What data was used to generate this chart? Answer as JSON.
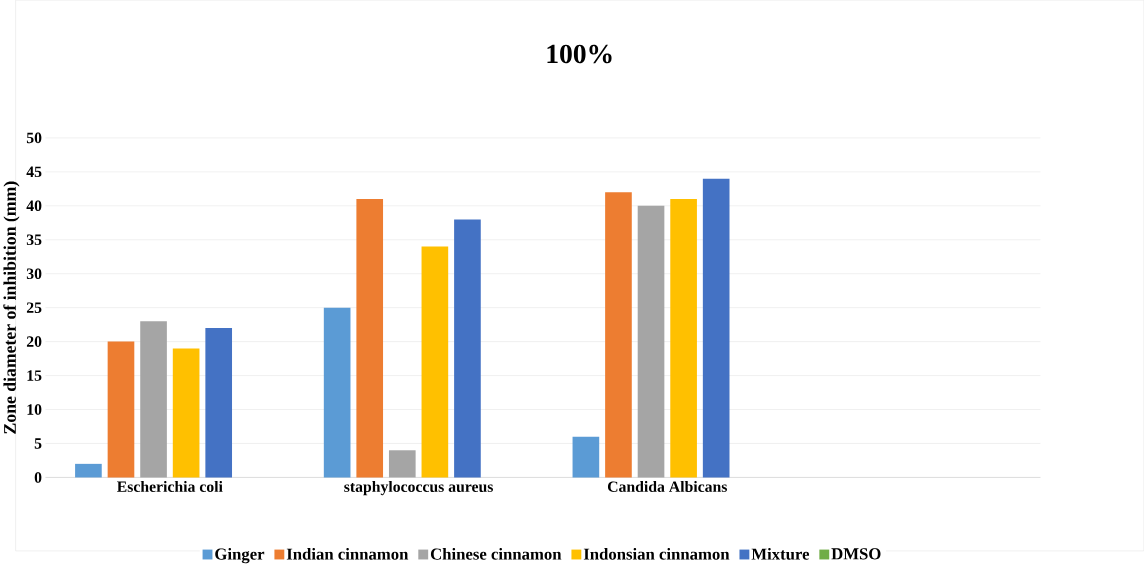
{
  "chart_data": {
    "type": "bar",
    "title": "100%",
    "ylabel": "Zone diameter of inhibition (mm)",
    "categories": [
      "Escherichia coli",
      "staphylococcus aureus",
      "Candida Albicans",
      null
    ],
    "series": [
      {
        "name": "Ginger",
        "color": "#5b9bd5",
        "values": [
          2,
          25,
          6,
          null
        ]
      },
      {
        "name": "Indian cinnamon",
        "color": "#ed7d31",
        "values": [
          20,
          41,
          42,
          null
        ]
      },
      {
        "name": "Chinese cinnamon",
        "color": "#a5a5a5",
        "values": [
          23,
          4,
          40,
          null
        ]
      },
      {
        "name": "Indonsian cinnamon",
        "color": "#ffc000",
        "values": [
          19,
          34,
          41,
          null
        ]
      },
      {
        "name": "Mixture",
        "color": "#4472c4",
        "values": [
          22,
          38,
          44,
          null
        ]
      },
      {
        "name": "DMSO",
        "color": "#70ad47",
        "values": [
          0,
          0,
          0,
          null
        ]
      }
    ],
    "ylim": [
      0,
      50
    ],
    "yticks": [
      0,
      5,
      10,
      15,
      20,
      25,
      30,
      35,
      40,
      45,
      50
    ],
    "grid": "y",
    "legend": "bottom"
  }
}
